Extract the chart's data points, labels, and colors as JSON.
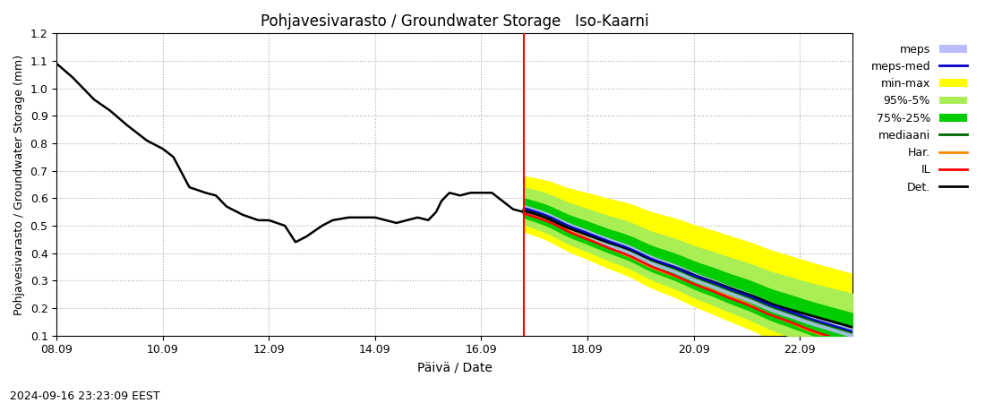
{
  "title": "Pohjavesivarasto / Groundwater Storage   Iso-Kaarni",
  "xlabel": "Päivä / Date",
  "ylabel": "Pohjavesivarasto / Groundwater Storage (mm)",
  "timestamp": "2024-09-16 23:23:09 EEST",
  "ylim": [
    0.1,
    1.2
  ],
  "vline_x": 8.8,
  "xtick_labels": [
    "08.09",
    "10.09",
    "12.09",
    "14.09",
    "16.09",
    "18.09",
    "20.09",
    "22.09"
  ],
  "xtick_pos": [
    0,
    2,
    4,
    6,
    8,
    10,
    12,
    14
  ],
  "yticks": [
    0.1,
    0.2,
    0.3,
    0.4,
    0.5,
    0.6,
    0.7,
    0.8,
    0.9,
    1.0,
    1.1,
    1.2
  ],
  "xlim": [
    0,
    15
  ],
  "colors": {
    "meps": "#bbbbff",
    "meps_med": "#0000cc",
    "min_max": "#ffff00",
    "pct95_5": "#aaee55",
    "pct75_25": "#00cc00",
    "mediaani": "#006600",
    "har": "#ff8800",
    "il": "#ff0000",
    "det": "#000000",
    "vline": "#ff0000",
    "grid": "#888888",
    "background": "#ffffff"
  }
}
